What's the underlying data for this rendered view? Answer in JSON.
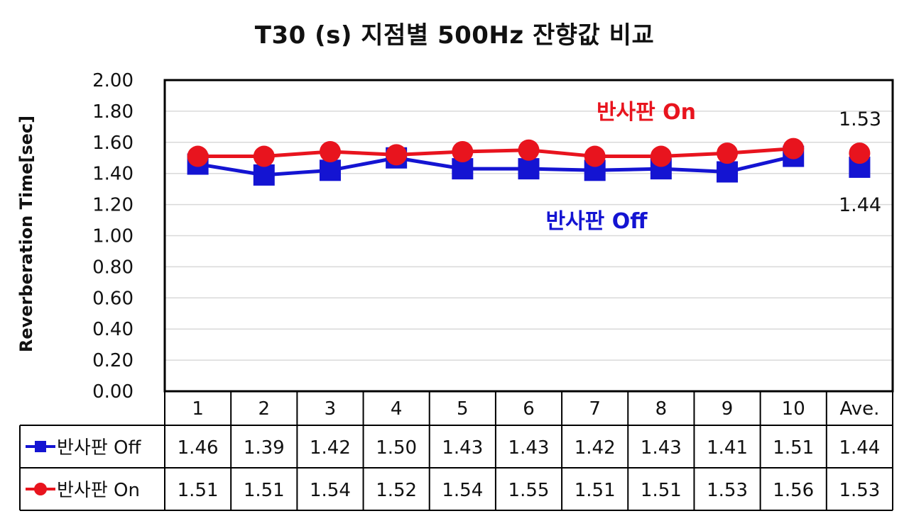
{
  "chart_data": {
    "type": "line",
    "title": "T30 (s) 지점별 500Hz 잔향값 비교",
    "ylabel": "Reverberation Time[sec]",
    "xlabel": "",
    "ylim": [
      0,
      2.0
    ],
    "yticks": [
      "0.00",
      "0.20",
      "0.40",
      "0.60",
      "0.80",
      "1.00",
      "1.20",
      "1.40",
      "1.60",
      "1.80",
      "2.00"
    ],
    "categories": [
      "1",
      "2",
      "3",
      "4",
      "5",
      "6",
      "7",
      "8",
      "9",
      "10",
      "Ave."
    ],
    "grid": true,
    "legend": "data-table",
    "series": [
      {
        "name": "반사판 Off",
        "color": "#1414d2",
        "marker": "square",
        "values": [
          1.46,
          1.39,
          1.42,
          1.5,
          1.43,
          1.43,
          1.42,
          1.43,
          1.41,
          1.51,
          1.44
        ],
        "table_values": [
          "1.46",
          "1.39",
          "1.42",
          "1.50",
          "1.43",
          "1.43",
          "1.42",
          "1.43",
          "1.41",
          "1.51",
          "1.44"
        ]
      },
      {
        "name": "반사판 On",
        "color": "#e8141e",
        "marker": "circle",
        "values": [
          1.51,
          1.51,
          1.54,
          1.52,
          1.54,
          1.55,
          1.51,
          1.51,
          1.53,
          1.56,
          1.53
        ],
        "table_values": [
          "1.51",
          "1.51",
          "1.54",
          "1.52",
          "1.54",
          "1.55",
          "1.51",
          "1.51",
          "1.53",
          "1.56",
          "1.53"
        ]
      }
    ],
    "annotations": {
      "on_label": "반사판 On",
      "off_label": "반사판 Off",
      "avg_on_label": "1.53",
      "avg_off_label": "1.44"
    }
  }
}
